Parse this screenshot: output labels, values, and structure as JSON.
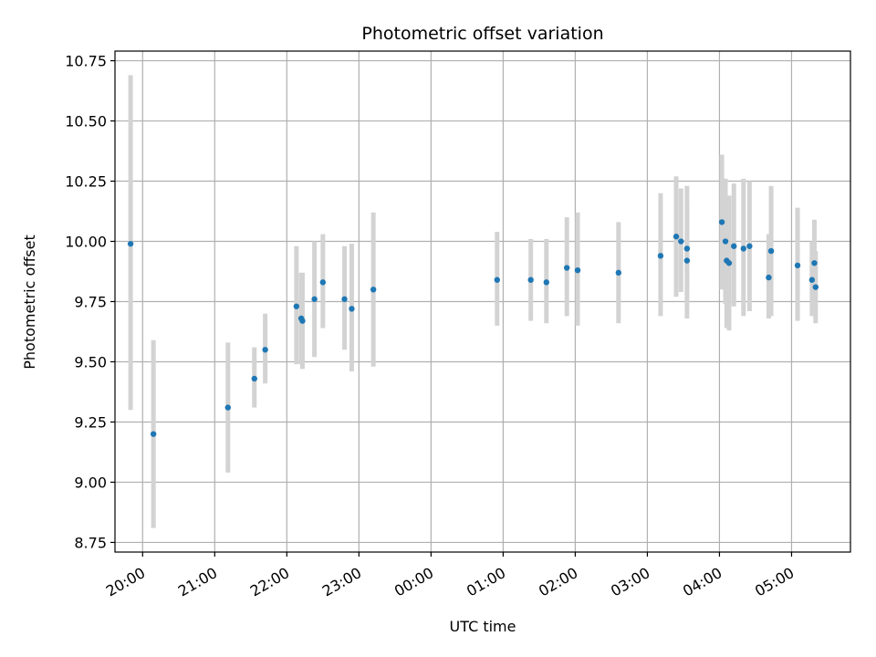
{
  "chart_data": {
    "type": "scatter",
    "title": "Photometric offset variation",
    "xlabel": "UTC time",
    "ylabel": "Photometric offset",
    "ylim": [
      8.71,
      10.79
    ],
    "xlim_hours": [
      "19:37",
      "05:49"
    ],
    "grid": true,
    "legend": "none",
    "colors": {
      "point": "#1f77b4",
      "errorbar": "#d3d3d3",
      "grid": "#b0b0b0"
    },
    "x_ticks": [
      "20:00",
      "21:00",
      "22:00",
      "23:00",
      "00:00",
      "01:00",
      "02:00",
      "03:00",
      "04:00",
      "05:00"
    ],
    "y_ticks": [
      "8.75",
      "9.00",
      "9.25",
      "9.50",
      "9.75",
      "10.00",
      "10.25",
      "10.50",
      "10.75"
    ],
    "series": [
      {
        "points": [
          {
            "x": "19:50",
            "y": 9.99,
            "ylo": 9.3,
            "yhi": 10.69
          },
          {
            "x": "20:09",
            "y": 9.2,
            "ylo": 8.81,
            "yhi": 9.59
          },
          {
            "x": "21:11",
            "y": 9.31,
            "ylo": 9.04,
            "yhi": 9.58
          },
          {
            "x": "21:33",
            "y": 9.43,
            "ylo": 9.31,
            "yhi": 9.56
          },
          {
            "x": "21:42",
            "y": 9.55,
            "ylo": 9.41,
            "yhi": 9.7
          },
          {
            "x": "22:08",
            "y": 9.73,
            "ylo": 9.49,
            "yhi": 9.98
          },
          {
            "x": "22:12",
            "y": 9.68,
            "ylo": 9.49,
            "yhi": 9.87
          },
          {
            "x": "22:13",
            "y": 9.67,
            "ylo": 9.47,
            "yhi": 9.87
          },
          {
            "x": "22:23",
            "y": 9.76,
            "ylo": 9.52,
            "yhi": 10.0
          },
          {
            "x": "22:30",
            "y": 9.83,
            "ylo": 9.64,
            "yhi": 10.03
          },
          {
            "x": "22:48",
            "y": 9.76,
            "ylo": 9.55,
            "yhi": 9.98
          },
          {
            "x": "22:54",
            "y": 9.72,
            "ylo": 9.46,
            "yhi": 9.99
          },
          {
            "x": "23:12",
            "y": 9.8,
            "ylo": 9.48,
            "yhi": 10.12
          },
          {
            "x": "00:55",
            "y": 9.84,
            "ylo": 9.65,
            "yhi": 10.04
          },
          {
            "x": "01:23",
            "y": 9.84,
            "ylo": 9.67,
            "yhi": 10.01
          },
          {
            "x": "01:36",
            "y": 9.83,
            "ylo": 9.66,
            "yhi": 10.01
          },
          {
            "x": "01:53",
            "y": 9.89,
            "ylo": 9.69,
            "yhi": 10.1
          },
          {
            "x": "02:02",
            "y": 9.88,
            "ylo": 9.65,
            "yhi": 10.12
          },
          {
            "x": "02:36",
            "y": 9.87,
            "ylo": 9.66,
            "yhi": 10.08
          },
          {
            "x": "03:11",
            "y": 9.94,
            "ylo": 9.69,
            "yhi": 10.2
          },
          {
            "x": "03:24",
            "y": 10.02,
            "ylo": 9.77,
            "yhi": 10.27
          },
          {
            "x": "03:28",
            "y": 10.0,
            "ylo": 9.79,
            "yhi": 10.22
          },
          {
            "x": "03:33",
            "y": 9.97,
            "ylo": 9.78,
            "yhi": 10.16
          },
          {
            "x": "03:33",
            "y": 9.92,
            "ylo": 9.68,
            "yhi": 10.23
          },
          {
            "x": "04:02",
            "y": 10.08,
            "ylo": 9.8,
            "yhi": 10.36
          },
          {
            "x": "04:05",
            "y": 10.0,
            "ylo": 9.74,
            "yhi": 10.26
          },
          {
            "x": "04:06",
            "y": 9.92,
            "ylo": 9.64,
            "yhi": 10.19
          },
          {
            "x": "04:08",
            "y": 9.91,
            "ylo": 9.63,
            "yhi": 10.19
          },
          {
            "x": "04:12",
            "y": 9.98,
            "ylo": 9.73,
            "yhi": 10.24
          },
          {
            "x": "04:20",
            "y": 9.97,
            "ylo": 9.69,
            "yhi": 10.26
          },
          {
            "x": "04:25",
            "y": 9.98,
            "ylo": 9.71,
            "yhi": 10.25
          },
          {
            "x": "04:41",
            "y": 9.85,
            "ylo": 9.68,
            "yhi": 10.03
          },
          {
            "x": "04:43",
            "y": 9.96,
            "ylo": 9.69,
            "yhi": 10.23
          },
          {
            "x": "05:05",
            "y": 9.9,
            "ylo": 9.67,
            "yhi": 10.14
          },
          {
            "x": "05:17",
            "y": 9.84,
            "ylo": 9.69,
            "yhi": 10.0
          },
          {
            "x": "05:19",
            "y": 9.91,
            "ylo": 9.72,
            "yhi": 10.09
          },
          {
            "x": "05:20",
            "y": 9.81,
            "ylo": 9.66,
            "yhi": 9.96
          }
        ]
      }
    ]
  }
}
